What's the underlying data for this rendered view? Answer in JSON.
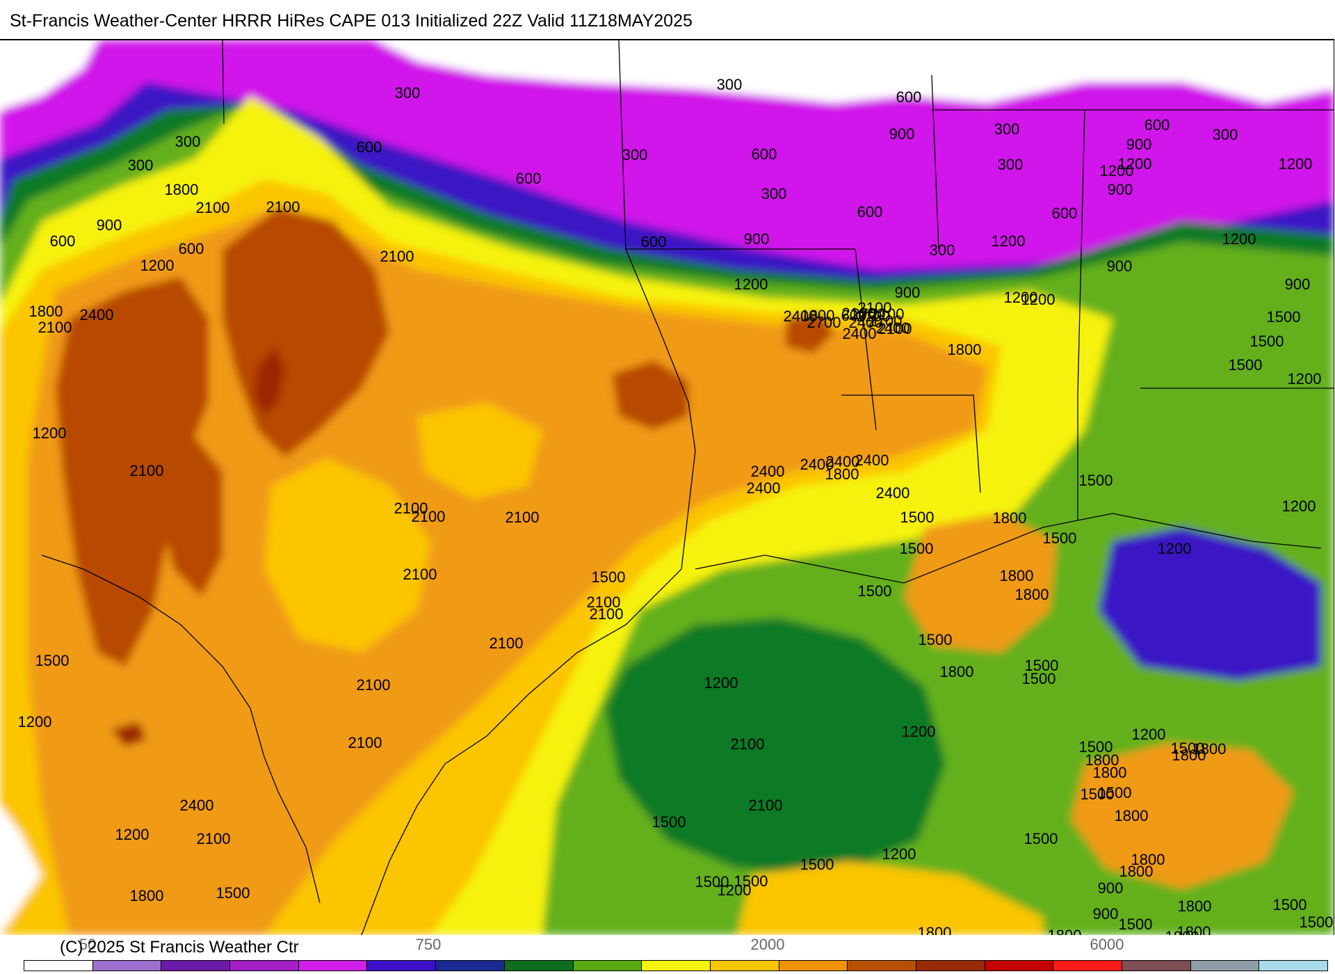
{
  "header": {
    "title": "St-Francis Weather-Center HRRR HiRes CAPE  013 Initialized  22Z Valid 11Z18MAY2025"
  },
  "footer": {
    "copyright": "(C) 2025 St Francis Weather Ctr",
    "scale_labels": [
      "50",
      "750",
      "2000",
      "6000"
    ]
  },
  "legend": {
    "colors": [
      "#ffffff",
      "#9b6fcf",
      "#6a1aa6",
      "#a41fc6",
      "#d01fe8",
      "#3b10c8",
      "#1a2a90",
      "#0e6e1e",
      "#5aaa14",
      "#f4f40c",
      "#f7c600",
      "#ee9200",
      "#b85000",
      "#9a2a00",
      "#c40000",
      "#ff1a1a",
      "#7e4e54",
      "#8e9ea6",
      "#a8dcea"
    ]
  },
  "map": {
    "colors": {
      "white": "#ffffff",
      "purple": "#d015ea",
      "blue": "#3b18c4",
      "darkgreen": "#107a28",
      "green": "#63b01e",
      "yellow": "#f6f20e",
      "gold": "#fbc500",
      "orange": "#f09a12",
      "rust": "#b84a05",
      "darkred": "#9c2600",
      "red": "#c8000e"
    },
    "labels": [
      "300",
      "300",
      "300",
      "300",
      "300",
      "300",
      "300",
      "300",
      "300",
      "300",
      "300",
      "600",
      "600",
      "600",
      "600",
      "600",
      "600",
      "600",
      "600",
      "600",
      "600",
      "600",
      "900",
      "900",
      "900",
      "900",
      "900",
      "900",
      "900",
      "900",
      "900",
      "900",
      "1200",
      "1200",
      "1200",
      "1200",
      "1200",
      "1200",
      "1200",
      "1200",
      "1200",
      "1200",
      "1200",
      "1200",
      "1200",
      "1200",
      "1200",
      "1200",
      "1200",
      "1200",
      "1200",
      "1200",
      "1200",
      "1500",
      "1500",
      "1500",
      "1500",
      "1500",
      "1500",
      "1500",
      "1500",
      "1500",
      "1500",
      "1500",
      "1500",
      "1500",
      "1500",
      "1500",
      "1500",
      "1500",
      "1500",
      "1500",
      "1500",
      "1500",
      "1500",
      "1500",
      "1500",
      "1500",
      "1500",
      "1800",
      "1800",
      "1800",
      "1800",
      "1800",
      "1800",
      "1800",
      "1800",
      "1800",
      "1800",
      "1800",
      "1800",
      "1800",
      "1800",
      "1800",
      "1800",
      "1800",
      "1800",
      "1800",
      "1800",
      "1800",
      "1800",
      "1800",
      "2100",
      "2100",
      "2100",
      "2100",
      "2100",
      "2100",
      "2100",
      "2100",
      "2100",
      "2100",
      "2100",
      "2100",
      "2100",
      "2100",
      "2100",
      "2100",
      "2100",
      "2100",
      "2100",
      "2100",
      "2100",
      "2100",
      "2400",
      "2400",
      "2400",
      "2400",
      "2400",
      "2400",
      "2400",
      "2400",
      "2400",
      "2400",
      "2400",
      "2400",
      "2700",
      "2700",
      "2700"
    ]
  }
}
